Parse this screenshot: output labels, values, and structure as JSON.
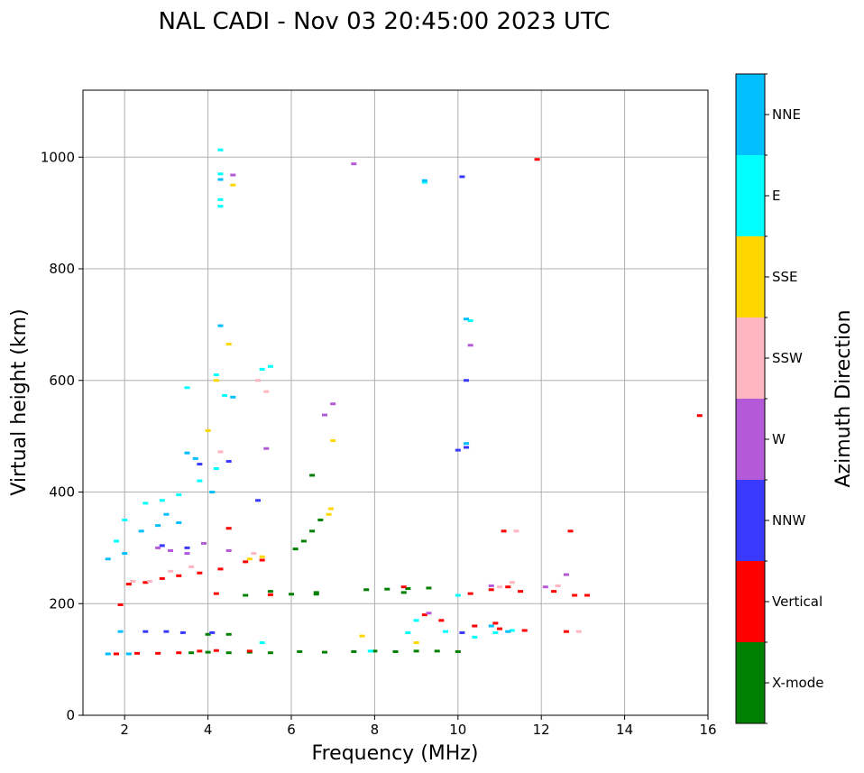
{
  "chart_data": {
    "type": "scatter",
    "title": "NAL CADI - Nov 03 20:45:00 2023 UTC",
    "xlabel": "Frequency (MHz)",
    "ylabel": "Virtual height (km)",
    "xlim": [
      1,
      16
    ],
    "ylim": [
      0,
      1120
    ],
    "xticks": [
      2,
      4,
      6,
      8,
      10,
      12,
      14,
      16
    ],
    "yticks": [
      0,
      200,
      400,
      600,
      800,
      1000
    ],
    "grid": true,
    "colorbar": {
      "label": "Azimuth Direction",
      "categories": [
        {
          "name": "X-mode",
          "color": "#008000"
        },
        {
          "name": "Vertical",
          "color": "#ff0000"
        },
        {
          "name": "NNW",
          "color": "#3a3aff"
        },
        {
          "name": "W",
          "color": "#b45ad8"
        },
        {
          "name": "SSW",
          "color": "#ffb6c1"
        },
        {
          "name": "SSE",
          "color": "#ffd700"
        },
        {
          "name": "E",
          "color": "#00ffff"
        },
        {
          "name": "NNE",
          "color": "#00bfff"
        }
      ]
    },
    "series": [
      {
        "name": "X-mode",
        "points": [
          [
            3.6,
            112
          ],
          [
            4.0,
            113
          ],
          [
            4.5,
            112
          ],
          [
            5.0,
            113
          ],
          [
            5.5,
            112
          ],
          [
            6.2,
            114
          ],
          [
            6.8,
            113
          ],
          [
            7.5,
            114
          ],
          [
            8.0,
            115
          ],
          [
            8.5,
            114
          ],
          [
            9.0,
            115
          ],
          [
            9.5,
            115
          ],
          [
            10.0,
            114
          ],
          [
            4.0,
            145
          ],
          [
            4.5,
            145
          ],
          [
            6.0,
            217
          ],
          [
            6.6,
            217
          ],
          [
            7.8,
            225
          ],
          [
            8.3,
            226
          ],
          [
            8.8,
            227
          ],
          [
            9.3,
            228
          ],
          [
            6.1,
            298
          ],
          [
            6.3,
            312
          ],
          [
            6.5,
            330
          ],
          [
            6.7,
            350
          ],
          [
            6.5,
            430
          ],
          [
            6.6,
            220
          ],
          [
            5.5,
            222
          ],
          [
            4.9,
            215
          ],
          [
            8.7,
            220
          ]
        ]
      },
      {
        "name": "Vertical",
        "points": [
          [
            1.8,
            110
          ],
          [
            2.3,
            111
          ],
          [
            2.8,
            111
          ],
          [
            3.3,
            112
          ],
          [
            3.8,
            115
          ],
          [
            4.2,
            116
          ],
          [
            5.0,
            115
          ],
          [
            5.5,
            216
          ],
          [
            4.2,
            218
          ],
          [
            4.3,
            262
          ],
          [
            3.8,
            255
          ],
          [
            3.3,
            250
          ],
          [
            2.9,
            245
          ],
          [
            2.5,
            238
          ],
          [
            2.1,
            235
          ],
          [
            1.9,
            198
          ],
          [
            4.9,
            275
          ],
          [
            5.3,
            278
          ],
          [
            8.7,
            230
          ],
          [
            10.3,
            218
          ],
          [
            10.8,
            225
          ],
          [
            11.2,
            230
          ],
          [
            11.5,
            222
          ],
          [
            12.3,
            222
          ],
          [
            12.8,
            215
          ],
          [
            13.1,
            215
          ],
          [
            11.0,
            155
          ],
          [
            11.6,
            152
          ],
          [
            12.6,
            150
          ],
          [
            9.2,
            180
          ],
          [
            9.6,
            170
          ],
          [
            11.1,
            330
          ],
          [
            12.7,
            330
          ],
          [
            10.4,
            160
          ],
          [
            10.9,
            165
          ],
          [
            15.8,
            537
          ],
          [
            11.9,
            996
          ],
          [
            4.5,
            335
          ]
        ]
      },
      {
        "name": "NNW",
        "points": [
          [
            2.5,
            150
          ],
          [
            3.0,
            150
          ],
          [
            3.4,
            148
          ],
          [
            4.1,
            148
          ],
          [
            2.9,
            304
          ],
          [
            3.5,
            300
          ],
          [
            4.5,
            455
          ],
          [
            5.2,
            385
          ],
          [
            10.2,
            600
          ],
          [
            10.1,
            965
          ],
          [
            10.2,
            480
          ],
          [
            10.0,
            475
          ],
          [
            3.8,
            450
          ],
          [
            10.1,
            148
          ]
        ]
      },
      {
        "name": "W",
        "points": [
          [
            2.8,
            300
          ],
          [
            3.1,
            295
          ],
          [
            3.5,
            290
          ],
          [
            3.9,
            308
          ],
          [
            4.5,
            295
          ],
          [
            5.4,
            478
          ],
          [
            6.8,
            538
          ],
          [
            7.0,
            558
          ],
          [
            7.5,
            988
          ],
          [
            4.6,
            968
          ],
          [
            10.3,
            663
          ],
          [
            12.6,
            252
          ],
          [
            12.1,
            230
          ],
          [
            9.3,
            183
          ],
          [
            10.8,
            232
          ]
        ]
      },
      {
        "name": "SSW",
        "points": [
          [
            2.2,
            240
          ],
          [
            2.6,
            240
          ],
          [
            3.1,
            258
          ],
          [
            3.6,
            266
          ],
          [
            4.3,
            472
          ],
          [
            5.4,
            580
          ],
          [
            5.2,
            600
          ],
          [
            11.4,
            330
          ],
          [
            11.0,
            230
          ],
          [
            11.3,
            238
          ],
          [
            12.4,
            232
          ],
          [
            12.9,
            150
          ],
          [
            5.1,
            290
          ]
        ]
      },
      {
        "name": "SSE",
        "points": [
          [
            4.2,
            600
          ],
          [
            4.5,
            665
          ],
          [
            4.6,
            950
          ],
          [
            5.0,
            280
          ],
          [
            5.3,
            284
          ],
          [
            6.9,
            360
          ],
          [
            6.95,
            370
          ],
          [
            7.0,
            492
          ],
          [
            4.0,
            510
          ],
          [
            7.7,
            142
          ],
          [
            9.0,
            130
          ]
        ]
      },
      {
        "name": "E",
        "points": [
          [
            2.5,
            380
          ],
          [
            2.9,
            385
          ],
          [
            3.3,
            395
          ],
          [
            3.8,
            420
          ],
          [
            4.2,
            442
          ],
          [
            4.2,
            610
          ],
          [
            4.3,
            912
          ],
          [
            4.3,
            924
          ],
          [
            9.2,
            955
          ],
          [
            10.3,
            707
          ],
          [
            3.5,
            587
          ],
          [
            4.4,
            573
          ],
          [
            5.3,
            620
          ],
          [
            5.5,
            625
          ],
          [
            1.8,
            312
          ],
          [
            2.0,
            350
          ],
          [
            10.0,
            215
          ],
          [
            10.4,
            140
          ],
          [
            10.9,
            148
          ],
          [
            11.3,
            152
          ],
          [
            9.0,
            170
          ],
          [
            9.7,
            150
          ],
          [
            8.8,
            148
          ],
          [
            4.3,
            1013
          ],
          [
            4.3,
            970
          ],
          [
            7.9,
            115
          ],
          [
            5.3,
            130
          ]
        ]
      },
      {
        "name": "NNE",
        "points": [
          [
            1.6,
            280
          ],
          [
            2.0,
            290
          ],
          [
            2.4,
            330
          ],
          [
            2.8,
            340
          ],
          [
            3.0,
            360
          ],
          [
            3.3,
            345
          ],
          [
            3.7,
            460
          ],
          [
            4.1,
            400
          ],
          [
            4.6,
            570
          ],
          [
            4.3,
            698
          ],
          [
            1.6,
            110
          ],
          [
            2.1,
            110
          ],
          [
            1.9,
            150
          ],
          [
            10.2,
            710
          ],
          [
            10.2,
            487
          ],
          [
            9.2,
            958
          ],
          [
            4.3,
            960
          ],
          [
            3.5,
            470
          ],
          [
            11.2,
            150
          ],
          [
            10.8,
            160
          ]
        ]
      }
    ]
  }
}
